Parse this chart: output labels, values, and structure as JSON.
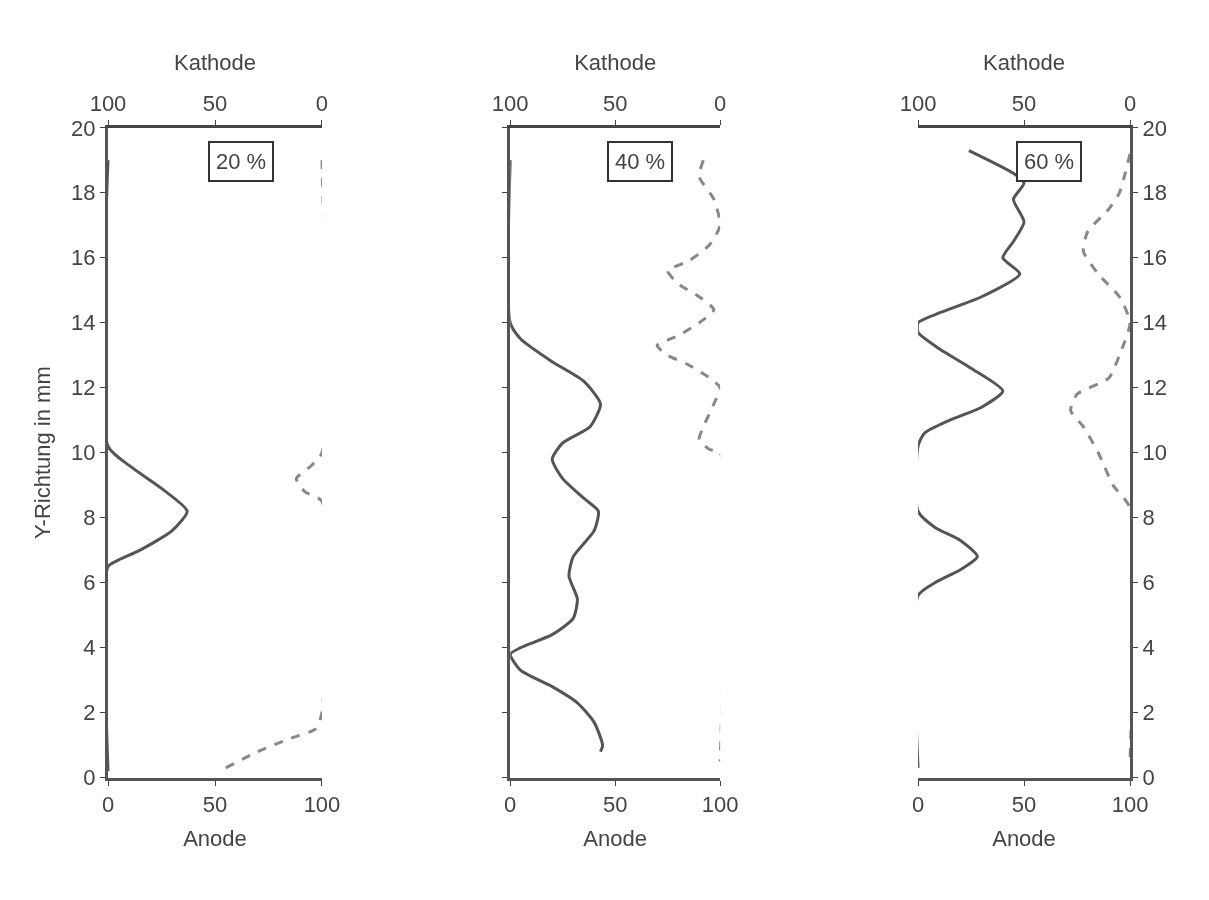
{
  "chart_data": [
    {
      "type": "line",
      "xlabel": "Anode",
      "x2label": "Kathode",
      "ylabel": "Y-Richtung in mm",
      "xlim": [
        0,
        100
      ],
      "xticks": [
        0,
        50,
        100
      ],
      "x2lim": [
        100,
        0
      ],
      "x2ticks": [
        100,
        50,
        0
      ],
      "ylim": [
        0,
        20
      ],
      "yticks": [
        0,
        2,
        4,
        6,
        8,
        10,
        12,
        14,
        16,
        18,
        20
      ],
      "annotations": [
        "20 %"
      ],
      "series": [
        {
          "color": "#555555",
          "line_style": "solid",
          "x": [
            0,
            0,
            10,
            25,
            37,
            30,
            15,
            5,
            0,
            0
          ],
          "values": [
            19,
            10.2,
            9.6,
            8.9,
            8.2,
            7.6,
            7.0,
            6.7,
            6.5,
            0.2
          ]
        },
        {
          "color": "#888888",
          "line_style": "dashed",
          "axis": "x2",
          "x": [
            45,
            30,
            15,
            3,
            0,
            0,
            8,
            12,
            5,
            0,
            0
          ],
          "values": [
            0.3,
            0.8,
            1.2,
            1.5,
            2,
            8.5,
            8.8,
            9.2,
            9.6,
            10,
            19
          ]
        }
      ]
    },
    {
      "type": "line",
      "xlabel": "Anode",
      "x2label": "Kathode",
      "xlim": [
        0,
        100
      ],
      "xticks": [
        0,
        50,
        100
      ],
      "x2lim": [
        100,
        0
      ],
      "x2ticks": [
        100,
        50,
        0
      ],
      "ylim": [
        0,
        20
      ],
      "yticks": [
        0,
        2,
        4,
        6,
        8,
        10,
        12,
        14,
        16,
        18,
        20
      ],
      "tick_labels": "x",
      "annotations": [
        "40 %"
      ],
      "series": [
        {
          "color": "#555555",
          "line_style": "solid",
          "x": [
            0,
            0,
            5,
            20,
            35,
            43,
            38,
            25,
            20,
            25,
            35,
            42,
            40,
            30,
            28,
            32,
            30,
            20,
            5,
            0,
            5,
            20,
            32,
            40,
            44,
            43
          ],
          "values": [
            19,
            14,
            13.5,
            12.8,
            12.2,
            11.5,
            10.8,
            10.3,
            9.8,
            9.2,
            8.6,
            8.2,
            7.6,
            6.8,
            6.2,
            5.5,
            4.9,
            4.4,
            4.0,
            3.8,
            3.3,
            2.8,
            2.3,
            1.7,
            1.0,
            0.8
          ]
        },
        {
          "color": "#888888",
          "line_style": "dashed",
          "axis": "x2",
          "x": [
            8,
            10,
            3,
            0,
            5,
            15,
            25,
            20,
            10,
            3,
            10,
            20,
            30,
            25,
            15,
            5,
            0,
            3,
            8,
            10,
            5,
            0,
            0
          ],
          "values": [
            19,
            18.5,
            17.8,
            17,
            16.4,
            15.9,
            15.6,
            15.2,
            14.8,
            14.4,
            14.0,
            13.6,
            13.3,
            13.0,
            12.7,
            12.3,
            12,
            11.5,
            10.8,
            10.4,
            10.1,
            10,
            0.5
          ]
        }
      ]
    },
    {
      "type": "line",
      "xlabel": "Anode",
      "x2label": "Kathode",
      "xlim": [
        0,
        100
      ],
      "xticks": [
        0,
        50,
        100
      ],
      "x2lim": [
        100,
        0
      ],
      "x2ticks": [
        100,
        50,
        0
      ],
      "ylim": [
        0,
        20
      ],
      "yticks": [
        0,
        2,
        4,
        6,
        8,
        10,
        12,
        14,
        16,
        18,
        20
      ],
      "annotations": [
        "60 %"
      ],
      "series": [
        {
          "color": "#555555",
          "line_style": "solid",
          "x": [
            24,
            45,
            50,
            45,
            50,
            45,
            40,
            48,
            30,
            10,
            0,
            0,
            10,
            25,
            40,
            30,
            15,
            3,
            0,
            0,
            8,
            20,
            28,
            20,
            8,
            0,
            0
          ],
          "values": [
            19.3,
            18.6,
            18.3,
            17.8,
            17.1,
            16.5,
            16.0,
            15.5,
            14.8,
            14.3,
            14,
            13.7,
            13.2,
            12.6,
            11.9,
            11.4,
            11.0,
            10.6,
            10.2,
            8.2,
            7.7,
            7.3,
            6.8,
            6.4,
            6.0,
            5.6,
            0.3
          ]
        },
        {
          "color": "#888888",
          "line_style": "dashed",
          "axis": "x2",
          "x": [
            0,
            5,
            10,
            20,
            22,
            15,
            5,
            0,
            5,
            10,
            25,
            28,
            22,
            15,
            8,
            0,
            0
          ],
          "values": [
            19.2,
            18,
            17.5,
            16.8,
            16.2,
            15.5,
            14.8,
            14,
            13,
            12.3,
            11.8,
            11.3,
            10.8,
            10,
            9,
            8.3,
            0.5
          ]
        }
      ]
    }
  ]
}
